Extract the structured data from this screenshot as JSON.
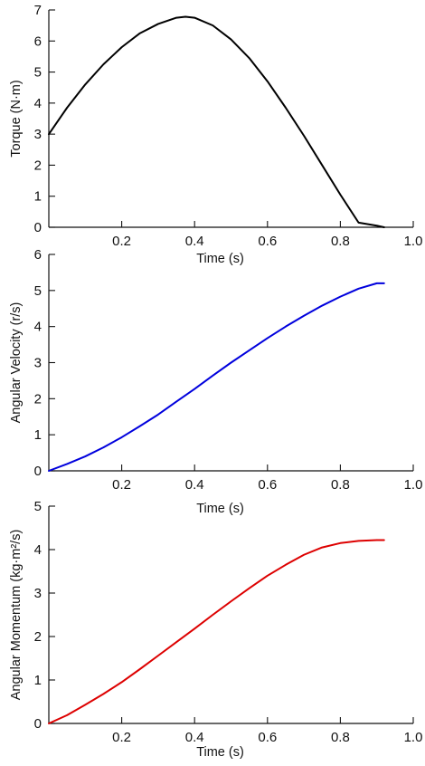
{
  "chart_data": [
    {
      "type": "line",
      "title": "",
      "xlabel": "Time (s)",
      "ylabel": "Torque (N·m)",
      "xlim": [
        0,
        1.0
      ],
      "ylim": [
        0,
        7
      ],
      "xticks": [
        0.2,
        0.4,
        0.6,
        0.8,
        1.0
      ],
      "xtick_labels": [
        "0.2",
        "0.4",
        "0.6",
        "0.8",
        "1.0"
      ],
      "yticks": [
        0,
        1,
        2,
        3,
        4,
        5,
        6,
        7
      ],
      "ytick_labels": [
        "0",
        "1",
        "2",
        "3",
        "4",
        "5",
        "6",
        "7"
      ],
      "grid": false,
      "legend": "none",
      "series": [
        {
          "color": "#000000",
          "x": [
            0.0,
            0.05,
            0.1,
            0.15,
            0.2,
            0.25,
            0.3,
            0.35,
            0.375,
            0.4,
            0.45,
            0.5,
            0.55,
            0.6,
            0.65,
            0.7,
            0.75,
            0.8,
            0.85,
            0.9,
            0.92
          ],
          "y": [
            3.0,
            3.85,
            4.6,
            5.25,
            5.8,
            6.25,
            6.55,
            6.75,
            6.78,
            6.75,
            6.5,
            6.05,
            5.45,
            4.7,
            3.85,
            2.95,
            2.0,
            1.05,
            0.15,
            0.05,
            0.0
          ]
        }
      ]
    },
    {
      "type": "line",
      "title": "",
      "xlabel": "Time (s)",
      "ylabel": "Angular Velocity (r/s)",
      "xlim": [
        0,
        1.0
      ],
      "ylim": [
        0,
        6
      ],
      "xticks": [
        0.2,
        0.4,
        0.6,
        0.8,
        1.0
      ],
      "xtick_labels": [
        "0.2",
        "0.4",
        "0.6",
        "0.8",
        "1.0"
      ],
      "yticks": [
        0,
        1,
        2,
        3,
        4,
        5,
        6
      ],
      "ytick_labels": [
        "0",
        "1",
        "2",
        "3",
        "4",
        "5",
        "6"
      ],
      "grid": false,
      "legend": "none",
      "series": [
        {
          "color": "#0000dd",
          "x": [
            0.0,
            0.05,
            0.1,
            0.15,
            0.2,
            0.25,
            0.3,
            0.35,
            0.4,
            0.45,
            0.5,
            0.55,
            0.6,
            0.65,
            0.7,
            0.75,
            0.8,
            0.85,
            0.9,
            0.92
          ],
          "y": [
            0.0,
            0.19,
            0.4,
            0.65,
            0.93,
            1.24,
            1.56,
            1.92,
            2.27,
            2.64,
            3.0,
            3.34,
            3.68,
            4.0,
            4.3,
            4.58,
            4.83,
            5.05,
            5.2,
            5.2
          ]
        }
      ]
    },
    {
      "type": "line",
      "title": "",
      "xlabel": "Time (s)",
      "ylabel": "Angular Momentum (kg·m²/s)",
      "xlim": [
        0,
        1.0
      ],
      "ylim": [
        0,
        5
      ],
      "xticks": [
        0.2,
        0.4,
        0.6,
        0.8,
        1.0
      ],
      "xtick_labels": [
        "0.2",
        "0.4",
        "0.6",
        "0.8",
        "1.0"
      ],
      "yticks": [
        0,
        1,
        2,
        3,
        4,
        5
      ],
      "ytick_labels": [
        "0",
        "1",
        "2",
        "3",
        "4",
        "5"
      ],
      "grid": false,
      "legend": "none",
      "series": [
        {
          "color": "#dd0000",
          "x": [
            0.0,
            0.05,
            0.1,
            0.15,
            0.2,
            0.25,
            0.3,
            0.35,
            0.4,
            0.45,
            0.5,
            0.55,
            0.6,
            0.65,
            0.7,
            0.75,
            0.8,
            0.85,
            0.9,
            0.92
          ],
          "y": [
            0.0,
            0.19,
            0.43,
            0.68,
            0.95,
            1.25,
            1.56,
            1.87,
            2.18,
            2.5,
            2.81,
            3.11,
            3.4,
            3.65,
            3.88,
            4.05,
            4.15,
            4.2,
            4.22,
            4.22
          ]
        }
      ]
    }
  ]
}
